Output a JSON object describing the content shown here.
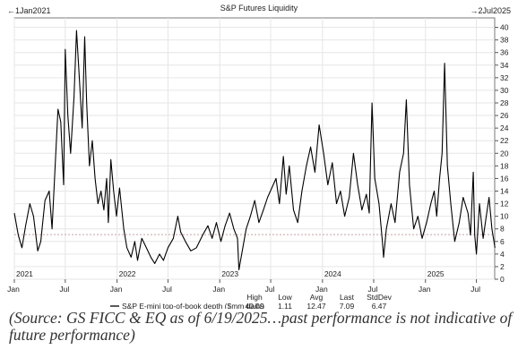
{
  "chart_data": {
    "type": "line",
    "title": "S&P Futures Liquidity",
    "date_range": {
      "start_label": "1Jan2021",
      "end_label": "2Jul2025"
    },
    "x_range": [
      "2021-01-01",
      "2025-07-02"
    ],
    "x_tick_labels": [
      "Jan",
      "Jul",
      "Jan",
      "Jul",
      "Jan",
      "Jul",
      "Jan",
      "Jul",
      "Jan",
      "Jul"
    ],
    "year_labels": [
      "2021",
      "2022",
      "2023",
      "2024",
      "2025"
    ],
    "y_ticks": [
      0,
      2,
      4,
      6,
      8,
      10,
      12,
      14,
      16,
      18,
      20,
      22,
      24,
      26,
      28,
      30,
      32,
      34,
      36,
      38,
      40
    ],
    "ylim": [
      0,
      41.5
    ],
    "y_axis_position": "right",
    "grid": true,
    "reference_line": {
      "value": 7.09,
      "style": "dotted",
      "color": "#c9a0a0"
    },
    "series": [
      {
        "name": "S&P E-mini top-of-book depth ($mm daily)",
        "color": "#000000",
        "points": [
          [
            "2021-01-01",
            10.5
          ],
          [
            "2021-01-15",
            7.0
          ],
          [
            "2021-01-28",
            5.0
          ],
          [
            "2021-02-10",
            8.5
          ],
          [
            "2021-02-25",
            12.0
          ],
          [
            "2021-03-10",
            10.0
          ],
          [
            "2021-03-25",
            4.5
          ],
          [
            "2021-04-05",
            6.0
          ],
          [
            "2021-04-20",
            12.5
          ],
          [
            "2021-05-05",
            14.0
          ],
          [
            "2021-05-15",
            8.0
          ],
          [
            "2021-05-25",
            17.0
          ],
          [
            "2021-06-05",
            27.0
          ],
          [
            "2021-06-15",
            25.0
          ],
          [
            "2021-06-25",
            15.0
          ],
          [
            "2021-07-01",
            36.5
          ],
          [
            "2021-07-10",
            26.0
          ],
          [
            "2021-07-20",
            20.0
          ],
          [
            "2021-08-01",
            29.0
          ],
          [
            "2021-08-10",
            39.5
          ],
          [
            "2021-08-20",
            32.0
          ],
          [
            "2021-08-30",
            24.0
          ],
          [
            "2021-09-08",
            38.5
          ],
          [
            "2021-09-15",
            28.0
          ],
          [
            "2021-09-25",
            18.0
          ],
          [
            "2021-10-05",
            22.0
          ],
          [
            "2021-10-15",
            16.0
          ],
          [
            "2021-10-25",
            12.0
          ],
          [
            "2021-11-05",
            14.0
          ],
          [
            "2021-11-15",
            11.0
          ],
          [
            "2021-11-25",
            16.0
          ],
          [
            "2021-12-01",
            9.0
          ],
          [
            "2021-12-10",
            19.0
          ],
          [
            "2021-12-20",
            14.0
          ],
          [
            "2021-12-30",
            10.0
          ],
          [
            "2022-01-10",
            14.5
          ],
          [
            "2022-01-25",
            8.0
          ],
          [
            "2022-02-05",
            5.0
          ],
          [
            "2022-02-20",
            3.5
          ],
          [
            "2022-03-05",
            6.0
          ],
          [
            "2022-03-15",
            3.0
          ],
          [
            "2022-03-30",
            6.5
          ],
          [
            "2022-04-15",
            5.0
          ],
          [
            "2022-05-01",
            3.5
          ],
          [
            "2022-05-15",
            2.5
          ],
          [
            "2022-06-01",
            4.0
          ],
          [
            "2022-06-15",
            3.0
          ],
          [
            "2022-07-01",
            5.0
          ],
          [
            "2022-07-20",
            6.5
          ],
          [
            "2022-08-05",
            10.0
          ],
          [
            "2022-08-15",
            7.5
          ],
          [
            "2022-09-01",
            6.0
          ],
          [
            "2022-09-20",
            4.5
          ],
          [
            "2022-10-10",
            5.0
          ],
          [
            "2022-11-01",
            7.0
          ],
          [
            "2022-11-20",
            8.5
          ],
          [
            "2022-12-05",
            6.5
          ],
          [
            "2022-12-20",
            9.0
          ],
          [
            "2023-01-05",
            6.0
          ],
          [
            "2023-01-20",
            8.5
          ],
          [
            "2023-02-05",
            10.5
          ],
          [
            "2023-02-20",
            8.0
          ],
          [
            "2023-03-05",
            6.5
          ],
          [
            "2023-03-10",
            1.5
          ],
          [
            "2023-03-20",
            4.0
          ],
          [
            "2023-04-05",
            8.0
          ],
          [
            "2023-04-20",
            10.0
          ],
          [
            "2023-05-05",
            12.5
          ],
          [
            "2023-05-20",
            9.0
          ],
          [
            "2023-06-05",
            11.0
          ],
          [
            "2023-06-20",
            13.0
          ],
          [
            "2023-07-05",
            14.5
          ],
          [
            "2023-07-20",
            16.0
          ],
          [
            "2023-08-01",
            12.0
          ],
          [
            "2023-08-15",
            19.5
          ],
          [
            "2023-08-25",
            13.5
          ],
          [
            "2023-09-05",
            18.0
          ],
          [
            "2023-09-20",
            11.0
          ],
          [
            "2023-10-05",
            9.0
          ],
          [
            "2023-10-20",
            14.0
          ],
          [
            "2023-11-05",
            18.0
          ],
          [
            "2023-11-20",
            21.0
          ],
          [
            "2023-12-05",
            17.0
          ],
          [
            "2023-12-20",
            24.5
          ],
          [
            "2024-01-05",
            20.0
          ],
          [
            "2024-01-20",
            15.0
          ],
          [
            "2024-02-05",
            18.5
          ],
          [
            "2024-02-20",
            12.0
          ],
          [
            "2024-03-05",
            14.0
          ],
          [
            "2024-03-20",
            10.0
          ],
          [
            "2024-04-05",
            13.0
          ],
          [
            "2024-04-20",
            20.0
          ],
          [
            "2024-05-05",
            15.0
          ],
          [
            "2024-05-20",
            11.0
          ],
          [
            "2024-06-05",
            13.5
          ],
          [
            "2024-06-15",
            10.5
          ],
          [
            "2024-06-25",
            28.0
          ],
          [
            "2024-07-05",
            16.0
          ],
          [
            "2024-07-20",
            12.0
          ],
          [
            "2024-08-01",
            6.0
          ],
          [
            "2024-08-05",
            3.5
          ],
          [
            "2024-08-15",
            8.0
          ],
          [
            "2024-09-01",
            12.0
          ],
          [
            "2024-09-15",
            9.0
          ],
          [
            "2024-10-01",
            17.0
          ],
          [
            "2024-10-15",
            20.0
          ],
          [
            "2024-10-25",
            28.5
          ],
          [
            "2024-11-05",
            15.0
          ],
          [
            "2024-11-20",
            8.0
          ],
          [
            "2024-12-05",
            10.0
          ],
          [
            "2024-12-20",
            6.5
          ],
          [
            "2025-01-05",
            9.0
          ],
          [
            "2025-01-20",
            12.0
          ],
          [
            "2025-02-01",
            14.0
          ],
          [
            "2025-02-10",
            10.0
          ],
          [
            "2025-02-20",
            16.0
          ],
          [
            "2025-03-01",
            20.0
          ],
          [
            "2025-03-10",
            34.3
          ],
          [
            "2025-03-20",
            18.0
          ],
          [
            "2025-04-01",
            12.0
          ],
          [
            "2025-04-15",
            6.0
          ],
          [
            "2025-05-01",
            9.0
          ],
          [
            "2025-05-15",
            13.0
          ],
          [
            "2025-06-01",
            10.5
          ],
          [
            "2025-06-10",
            7.0
          ],
          [
            "2025-06-20",
            17.0
          ],
          [
            "2025-06-25",
            7.0
          ],
          [
            "2025-07-01",
            4.0
          ],
          [
            "2025-07-12",
            12.0
          ],
          [
            "2025-07-25",
            6.5
          ],
          [
            "2025-08-05",
            10.0
          ],
          [
            "2025-08-15",
            13.0
          ],
          [
            "2025-08-25",
            8.0
          ],
          [
            "2025-09-05",
            5.0
          ]
        ]
      }
    ],
    "stats": {
      "series_label": "S&P E-mini top-of-book depth ($mm daily)",
      "headers": [
        "High",
        "Low",
        "Avg",
        "Last",
        "StdDev"
      ],
      "values": [
        "40.09",
        "1.11",
        "12.47",
        "7.09",
        "6.47"
      ]
    }
  },
  "caption_lines": [
    "(Source: GS FICC & EQ as of 6/19/2025…past performance is not indicative of",
    "future performance)"
  ]
}
